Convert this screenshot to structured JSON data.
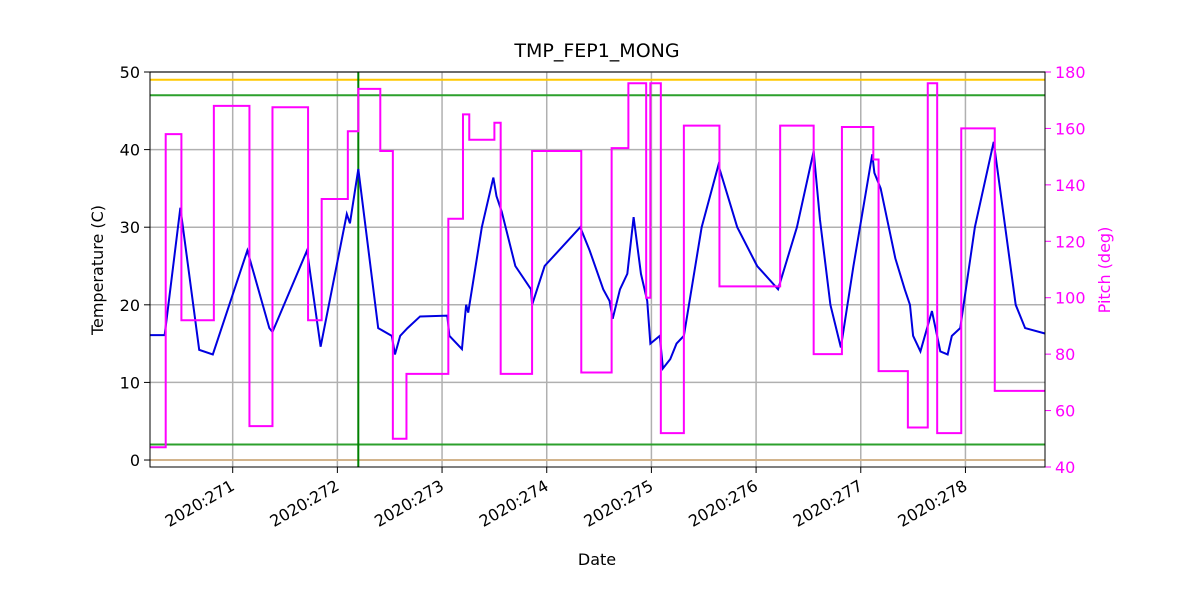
{
  "chart_data": {
    "type": "line",
    "title": "TMP_FEP1_MONG",
    "xlabel": "Date",
    "ylabel": "Temperature (C)",
    "y2label": "Pitch (deg)",
    "xlim": [
      270.21,
      278.76
    ],
    "ylim": [
      -0.9,
      50
    ],
    "y2lim": [
      40,
      180
    ],
    "xticks": [
      {
        "value": 271,
        "label": "2020:271"
      },
      {
        "value": 272,
        "label": "2020:272"
      },
      {
        "value": 273,
        "label": "2020:273"
      },
      {
        "value": 274,
        "label": "2020:274"
      },
      {
        "value": 275,
        "label": "2020:275"
      },
      {
        "value": 276,
        "label": "2020:276"
      },
      {
        "value": 277,
        "label": "2020:277"
      },
      {
        "value": 278,
        "label": "2020:278"
      }
    ],
    "yticks": [
      0,
      10,
      20,
      30,
      40,
      50
    ],
    "y2ticks": [
      40,
      60,
      80,
      100,
      120,
      140,
      160,
      180
    ],
    "grid": true,
    "y2color": "#ff00ff",
    "hlines": [
      {
        "value": 49,
        "color": "#ffc800"
      },
      {
        "value": 47,
        "color": "#2ca02c"
      },
      {
        "value": 2,
        "color": "#2ca02c"
      },
      {
        "value": 0,
        "color": "#d2b48c"
      }
    ],
    "vline": {
      "value": 272.2,
      "color": "#008000"
    },
    "series": [
      {
        "color": "#0000e0",
        "x": [
          270.21,
          270.35,
          270.5,
          270.68,
          270.81,
          271.14,
          271.35,
          271.38,
          271.71,
          271.84,
          272.09,
          272.12,
          272.2,
          272.39,
          272.52,
          272.55,
          272.6,
          272.67,
          272.79,
          273.05,
          273.07,
          273.19,
          273.23,
          273.25,
          273.38,
          273.49,
          273.52,
          273.57,
          273.7,
          273.85,
          273.86,
          273.98,
          274.32,
          274.41,
          274.54,
          274.6,
          274.63,
          274.7,
          274.77,
          274.83,
          274.9,
          274.96,
          274.99,
          275.08,
          275.11,
          275.18,
          275.24,
          275.31,
          275.48,
          275.64,
          275.82,
          276.01,
          276.21,
          276.39,
          276.55,
          276.61,
          276.71,
          276.81,
          276.93,
          277.11,
          277.13,
          277.19,
          277.33,
          277.42,
          277.47,
          277.5,
          277.57,
          277.68,
          277.76,
          277.83,
          277.87,
          277.95,
          278.09,
          278.27,
          278.38,
          278.48,
          278.57,
          278.76
        ],
        "values": [
          16.1,
          16.1,
          32.5,
          14.2,
          13.6,
          27,
          17,
          16.5,
          27,
          14.6,
          31.7,
          30.5,
          37.5,
          17,
          16,
          13.6,
          16,
          17,
          18.5,
          18.6,
          16,
          14.3,
          20,
          19,
          30,
          36.4,
          34,
          32,
          25,
          22,
          20,
          25,
          30,
          27,
          22,
          20.5,
          18.2,
          22,
          24,
          31.3,
          24,
          20.5,
          15,
          16,
          11.8,
          13,
          15,
          16,
          30,
          38,
          30,
          25,
          22,
          30,
          39.8,
          31,
          20,
          14.5,
          25,
          39.4,
          37,
          35,
          26,
          22,
          20,
          16,
          14,
          19.2,
          14,
          13.6,
          16,
          17,
          30,
          41,
          30,
          20,
          17,
          16.3
        ]
      },
      {
        "color": "#ff00ff",
        "axis": "y2",
        "step": "post",
        "x": [
          270.21,
          270.36,
          270.51,
          270.82,
          271.16,
          271.38,
          271.72,
          271.85,
          272.1,
          272.2,
          272.41,
          272.53,
          272.66,
          273.06,
          273.2,
          273.26,
          273.5,
          273.56,
          273.86,
          274.33,
          274.62,
          274.78,
          274.95,
          274.99,
          275.09,
          275.31,
          275.65,
          276.23,
          276.55,
          276.82,
          277.12,
          277.17,
          277.45,
          277.64,
          277.73,
          277.96,
          278.28,
          278.76
        ],
        "values": [
          47,
          158,
          92,
          168,
          54.5,
          167.5,
          92,
          135,
          159,
          174,
          152,
          50,
          73,
          128,
          165,
          156,
          162,
          73,
          152,
          73.5,
          153,
          176,
          100,
          176,
          52,
          161,
          104,
          161,
          80,
          160.5,
          149,
          74,
          54,
          176,
          52,
          160,
          67,
          67
        ]
      }
    ]
  }
}
